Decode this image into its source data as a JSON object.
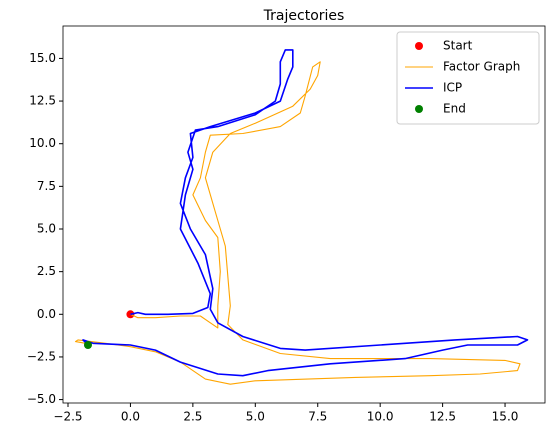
{
  "chart_data": {
    "type": "line",
    "title": "Trajectories",
    "xlim": [
      -2.7,
      16.6
    ],
    "ylim": [
      -5.2,
      16.9
    ],
    "xticks": [
      {
        "value": -2.5,
        "label": "−2.5"
      },
      {
        "value": 0,
        "label": "0.0"
      },
      2.5,
      {
        "value": 5,
        "label": "5.0"
      },
      7.5,
      {
        "value": 10,
        "label": "10.0"
      },
      12.5,
      {
        "value": 15,
        "label": "15.0"
      }
    ],
    "yticks": [
      {
        "value": -5,
        "label": "−5.0"
      },
      {
        "value": -2.5,
        "label": "−2.5"
      },
      {
        "value": 0,
        "label": "0.0"
      },
      2.5,
      {
        "value": 5,
        "label": "5.0"
      },
      7.5,
      {
        "value": 10,
        "label": "10.0"
      },
      12.5,
      {
        "value": 15,
        "label": "15.0"
      }
    ],
    "legend": "upper right",
    "series": [
      {
        "name": "Start",
        "kind": "scatter",
        "color": "#ff0000",
        "x": [
          0
        ],
        "values": [
          0
        ]
      },
      {
        "name": "Factor Graph",
        "kind": "line",
        "color": "#ffa500",
        "x": [
          0,
          0.3,
          1,
          2,
          2.8,
          3.2,
          3.5,
          3.5,
          3.6,
          3.5,
          3.0,
          2.5,
          2.8,
          3.0,
          3.2,
          4.5,
          6.0,
          6.8,
          7.0,
          7.3,
          7.6,
          7.5,
          7.2,
          6.5,
          5,
          4,
          3.3,
          3.0,
          3.4,
          3.8,
          4.0,
          3.9,
          4.5,
          6,
          8,
          12,
          15,
          15.6,
          15.5,
          14,
          12,
          9,
          5,
          4,
          3,
          2,
          1,
          0,
          -1,
          -2.1,
          -2.2,
          -1.8
        ],
        "values": [
          0,
          -0.2,
          -0.2,
          -0.1,
          -0.1,
          -0.5,
          -0.8,
          0.5,
          2.5,
          4.5,
          5.5,
          7.0,
          8.0,
          9.5,
          10.5,
          10.6,
          11.0,
          11.8,
          12.8,
          14.5,
          14.8,
          14.0,
          13.2,
          12.2,
          11.2,
          10.6,
          9.5,
          8.0,
          6.0,
          4.0,
          0.5,
          -0.6,
          -1.5,
          -2.3,
          -2.6,
          -2.6,
          -2.7,
          -2.9,
          -3.3,
          -3.5,
          -3.6,
          -3.7,
          -3.9,
          -4.1,
          -3.8,
          -2.8,
          -2.2,
          -1.9,
          -1.7,
          -1.5,
          -1.6,
          -1.7
        ]
      },
      {
        "name": "ICP",
        "kind": "line",
        "color": "#0000ff",
        "x": [
          0,
          0.3,
          0.6,
          1.5,
          2.5,
          3.1,
          3.2,
          2.7,
          2.0,
          2.2,
          2.5,
          2.3,
          2.6,
          3.5,
          5.0,
          5.8,
          6.0,
          6.0,
          6.2,
          6.5,
          6.5,
          6.3,
          6.0,
          5.0,
          3.2,
          2.4,
          2.5,
          2.2,
          2.0,
          2.4,
          3.0,
          3.3,
          3.2,
          3.5,
          4.5,
          6,
          7,
          10,
          13,
          15.5,
          15.9,
          15.5,
          13.5,
          12.5,
          11,
          8,
          5.5,
          4.5,
          3.5,
          2,
          1,
          0,
          -1.5,
          -1.9,
          -1.7
        ],
        "values": [
          0,
          0.1,
          0,
          0,
          0.05,
          0.4,
          1.2,
          3.0,
          5.0,
          7.0,
          8.5,
          9.5,
          10.8,
          11.0,
          11.7,
          12.5,
          13.5,
          14.8,
          15.5,
          15.5,
          14.5,
          13.8,
          12.5,
          11.8,
          11.0,
          10.6,
          9.2,
          8.0,
          6.5,
          5.0,
          3.5,
          1.5,
          0.3,
          -0.5,
          -1.3,
          -2.0,
          -2.1,
          -1.8,
          -1.5,
          -1.3,
          -1.5,
          -1.8,
          -1.8,
          -2.1,
          -2.6,
          -2.9,
          -3.3,
          -3.6,
          -3.5,
          -2.8,
          -2.1,
          -1.8,
          -1.7,
          -1.5,
          -1.8
        ]
      },
      {
        "name": "End",
        "kind": "scatter",
        "color": "#008000",
        "x": [
          -1.7
        ],
        "values": [
          -1.8
        ]
      }
    ]
  }
}
